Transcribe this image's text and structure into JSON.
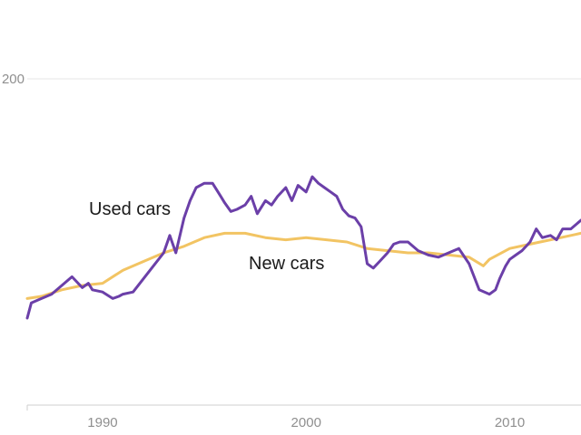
{
  "chart_data": {
    "type": "line",
    "title": "",
    "xlabel": "",
    "ylabel": "",
    "xlim": [
      1986.3,
      2013.5
    ],
    "ylim": [
      50,
      200
    ],
    "grid": true,
    "x_ticks": [
      1990,
      2000,
      2010
    ],
    "x_tick_labels": [
      "1990",
      "2000",
      "2010"
    ],
    "y_ticks": [
      200
    ],
    "y_tick_labels": [
      "200"
    ],
    "colors": {
      "used": "#6b3fa8",
      "new": "#f2c463",
      "grid": "#e6e6e6",
      "axis": "#cfcfcfcf"
    },
    "series": [
      {
        "name": "Used cars",
        "color": "#6b3fa8",
        "x": [
          1986.3,
          1986.5,
          1987.0,
          1987.5,
          1988.0,
          1988.5,
          1989.0,
          1989.3,
          1989.5,
          1990.0,
          1990.5,
          1990.8,
          1991.0,
          1991.5,
          1992.0,
          1992.5,
          1993.0,
          1993.3,
          1993.6,
          1994.0,
          1994.3,
          1994.6,
          1995.0,
          1995.4,
          1995.8,
          1996.0,
          1996.3,
          1996.6,
          1997.0,
          1997.3,
          1997.6,
          1998.0,
          1998.3,
          1998.6,
          1999.0,
          1999.3,
          1999.6,
          2000.0,
          2000.3,
          2000.6,
          2000.9,
          2001.2,
          2001.5,
          2001.8,
          2002.1,
          2002.4,
          2002.7,
          2003.0,
          2003.3,
          2003.6,
          2004.0,
          2004.3,
          2004.6,
          2005.0,
          2005.5,
          2006.0,
          2006.5,
          2007.0,
          2007.5,
          2008.0,
          2008.5,
          2009.0,
          2009.3,
          2009.5,
          2009.8,
          2010.0,
          2010.3,
          2010.6,
          2011.0,
          2011.3,
          2011.6,
          2012.0,
          2012.3,
          2012.6,
          2013.0,
          2013.5
        ],
        "values": [
          90,
          97,
          99,
          101,
          105,
          109,
          104,
          106,
          103,
          102,
          99,
          100,
          101,
          102,
          108,
          114,
          120,
          128,
          120,
          136,
          144,
          150,
          152,
          152,
          146,
          143,
          139,
          140,
          142,
          146,
          138,
          144,
          142,
          146,
          150,
          144,
          151,
          148,
          155,
          152,
          150,
          148,
          146,
          140,
          137,
          136,
          132,
          115,
          113,
          116,
          120,
          124,
          125,
          125,
          121,
          119,
          118,
          120,
          122,
          115,
          103,
          101,
          103,
          108,
          114,
          117,
          119,
          121,
          125,
          131,
          127,
          128,
          126,
          131,
          131,
          135
        ]
      },
      {
        "name": "New cars",
        "color": "#f2c463",
        "x": [
          1986.3,
          1987.0,
          1988.0,
          1989.0,
          1990.0,
          1991.0,
          1992.0,
          1993.0,
          1994.0,
          1995.0,
          1996.0,
          1997.0,
          1998.0,
          1999.0,
          2000.0,
          2001.0,
          2002.0,
          2003.0,
          2004.0,
          2005.0,
          2006.0,
          2007.0,
          2008.0,
          2008.7,
          2009.0,
          2010.0,
          2011.0,
          2012.0,
          2013.0,
          2013.5
        ],
        "values": [
          99,
          100,
          103,
          105,
          106,
          112,
          116,
          120,
          123,
          127,
          129,
          129,
          127,
          126,
          127,
          126,
          125,
          122,
          121,
          120,
          120,
          119,
          118,
          114,
          117,
          122,
          124,
          126,
          128,
          129
        ]
      }
    ],
    "annotations": [
      {
        "text": "Used cars",
        "series": "Used cars"
      },
      {
        "text": "New cars",
        "series": "New cars"
      }
    ]
  }
}
